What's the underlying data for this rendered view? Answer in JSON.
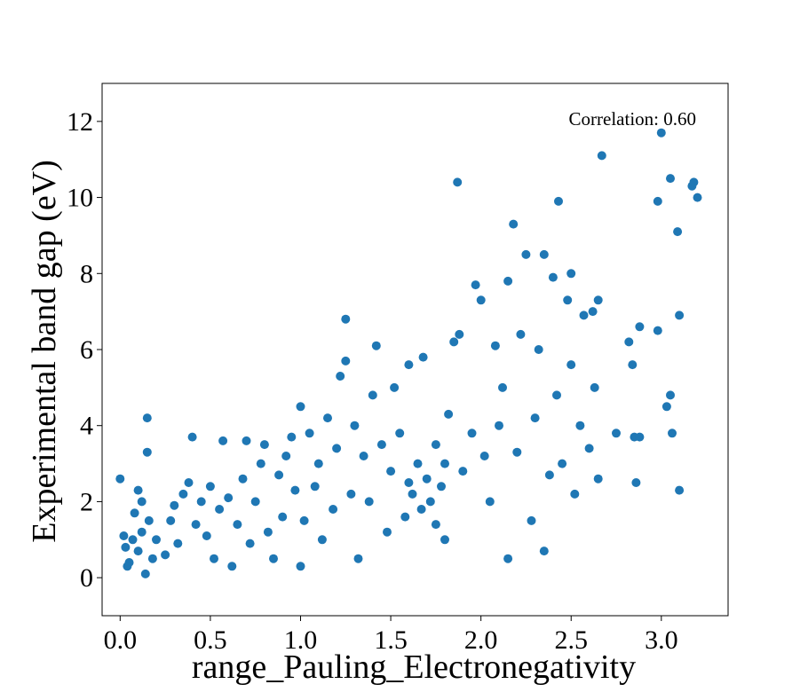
{
  "chart_data": {
    "type": "scatter",
    "xlabel": "range_Pauling_Electronegativity",
    "ylabel": "Experimental band gap (eV)",
    "annotation": "Correlation: 0.60",
    "xlim": [
      -0.1,
      3.37
    ],
    "ylim": [
      -1.0,
      13.0
    ],
    "xticks": [
      0.0,
      0.5,
      1.0,
      1.5,
      2.0,
      2.5,
      3.0
    ],
    "xtick_labels": [
      "0.0",
      "0.5",
      "1.0",
      "1.5",
      "2.0",
      "2.5",
      "3.0"
    ],
    "yticks": [
      0,
      2,
      4,
      6,
      8,
      10,
      12
    ],
    "ytick_labels": [
      "0",
      "2",
      "4",
      "6",
      "8",
      "10",
      "12"
    ],
    "grid": false,
    "marker_color": "#1f77b4",
    "series": [
      {
        "points": [
          [
            0.0,
            2.6
          ],
          [
            0.02,
            1.1
          ],
          [
            0.03,
            0.8
          ],
          [
            0.05,
            0.4
          ],
          [
            0.07,
            1.0
          ],
          [
            0.1,
            0.7
          ],
          [
            0.12,
            1.2
          ],
          [
            0.04,
            0.3
          ],
          [
            0.15,
            4.2
          ],
          [
            0.15,
            3.3
          ],
          [
            0.12,
            2.0
          ],
          [
            0.1,
            2.3
          ],
          [
            0.16,
            1.5
          ],
          [
            0.2,
            1.0
          ],
          [
            0.18,
            0.5
          ],
          [
            0.14,
            0.1
          ],
          [
            0.08,
            1.7
          ],
          [
            0.25,
            0.6
          ],
          [
            0.28,
            1.5
          ],
          [
            0.3,
            1.9
          ],
          [
            0.32,
            0.9
          ],
          [
            0.35,
            2.2
          ],
          [
            0.38,
            2.5
          ],
          [
            0.4,
            3.7
          ],
          [
            0.42,
            1.4
          ],
          [
            0.45,
            2.0
          ],
          [
            0.48,
            1.1
          ],
          [
            0.5,
            2.4
          ],
          [
            0.52,
            0.5
          ],
          [
            0.55,
            1.8
          ],
          [
            0.57,
            3.6
          ],
          [
            0.6,
            2.1
          ],
          [
            0.62,
            0.3
          ],
          [
            0.65,
            1.4
          ],
          [
            0.68,
            2.6
          ],
          [
            0.7,
            3.6
          ],
          [
            0.72,
            0.9
          ],
          [
            0.75,
            2.0
          ],
          [
            0.78,
            3.0
          ],
          [
            0.8,
            3.5
          ],
          [
            0.82,
            1.2
          ],
          [
            0.85,
            0.5
          ],
          [
            0.88,
            2.7
          ],
          [
            0.9,
            1.6
          ],
          [
            0.92,
            3.2
          ],
          [
            0.95,
            3.7
          ],
          [
            0.97,
            2.3
          ],
          [
            1.0,
            4.5
          ],
          [
            1.0,
            0.3
          ],
          [
            1.02,
            1.5
          ],
          [
            1.05,
            3.8
          ],
          [
            1.08,
            2.4
          ],
          [
            1.1,
            3.0
          ],
          [
            1.12,
            1.0
          ],
          [
            1.15,
            4.2
          ],
          [
            1.18,
            1.8
          ],
          [
            1.2,
            3.4
          ],
          [
            1.22,
            5.3
          ],
          [
            1.25,
            5.7
          ],
          [
            1.25,
            6.8
          ],
          [
            1.28,
            2.2
          ],
          [
            1.3,
            4.0
          ],
          [
            1.32,
            0.5
          ],
          [
            1.35,
            3.2
          ],
          [
            1.38,
            2.0
          ],
          [
            1.4,
            4.8
          ],
          [
            1.42,
            6.1
          ],
          [
            1.45,
            3.5
          ],
          [
            1.48,
            1.2
          ],
          [
            1.5,
            2.8
          ],
          [
            1.52,
            5.0
          ],
          [
            1.55,
            3.8
          ],
          [
            1.58,
            1.6
          ],
          [
            1.6,
            5.6
          ],
          [
            1.6,
            2.5
          ],
          [
            1.62,
            2.2
          ],
          [
            1.65,
            3.0
          ],
          [
            1.67,
            1.8
          ],
          [
            1.68,
            5.8
          ],
          [
            1.7,
            2.6
          ],
          [
            1.72,
            2.0
          ],
          [
            1.75,
            3.5
          ],
          [
            1.75,
            1.4
          ],
          [
            1.78,
            2.4
          ],
          [
            1.8,
            1.0
          ],
          [
            1.8,
            3.0
          ],
          [
            1.82,
            4.3
          ],
          [
            1.85,
            6.2
          ],
          [
            1.87,
            10.4
          ],
          [
            1.88,
            6.4
          ],
          [
            1.9,
            2.8
          ],
          [
            1.95,
            3.8
          ],
          [
            1.97,
            7.7
          ],
          [
            2.0,
            7.3
          ],
          [
            2.02,
            3.2
          ],
          [
            2.05,
            2.0
          ],
          [
            2.08,
            6.1
          ],
          [
            2.1,
            4.0
          ],
          [
            2.12,
            5.0
          ],
          [
            2.15,
            7.8
          ],
          [
            2.15,
            0.5
          ],
          [
            2.18,
            9.3
          ],
          [
            2.2,
            3.3
          ],
          [
            2.22,
            6.4
          ],
          [
            2.25,
            8.5
          ],
          [
            2.28,
            1.5
          ],
          [
            2.3,
            4.2
          ],
          [
            2.32,
            6.0
          ],
          [
            2.35,
            8.5
          ],
          [
            2.35,
            0.7
          ],
          [
            2.38,
            2.7
          ],
          [
            2.4,
            7.9
          ],
          [
            2.42,
            4.8
          ],
          [
            2.43,
            9.9
          ],
          [
            2.45,
            3.0
          ],
          [
            2.48,
            7.3
          ],
          [
            2.5,
            8.0
          ],
          [
            2.5,
            5.6
          ],
          [
            2.52,
            2.2
          ],
          [
            2.55,
            4.0
          ],
          [
            2.57,
            6.9
          ],
          [
            2.6,
            3.4
          ],
          [
            2.62,
            7.0
          ],
          [
            2.63,
            5.0
          ],
          [
            2.65,
            7.3
          ],
          [
            2.65,
            2.6
          ],
          [
            2.67,
            11.1
          ],
          [
            2.75,
            3.8
          ],
          [
            2.82,
            6.2
          ],
          [
            2.84,
            5.6
          ],
          [
            2.85,
            3.7
          ],
          [
            2.86,
            2.5
          ],
          [
            2.88,
            6.6
          ],
          [
            2.88,
            3.7
          ],
          [
            2.98,
            9.9
          ],
          [
            2.98,
            6.5
          ],
          [
            3.0,
            11.7
          ],
          [
            3.03,
            4.5
          ],
          [
            3.05,
            10.5
          ],
          [
            3.05,
            4.8
          ],
          [
            3.06,
            3.8
          ],
          [
            3.09,
            9.1
          ],
          [
            3.1,
            6.9
          ],
          [
            3.1,
            2.3
          ],
          [
            3.17,
            10.3
          ],
          [
            3.18,
            10.4
          ],
          [
            3.2,
            10.0
          ]
        ]
      }
    ]
  }
}
